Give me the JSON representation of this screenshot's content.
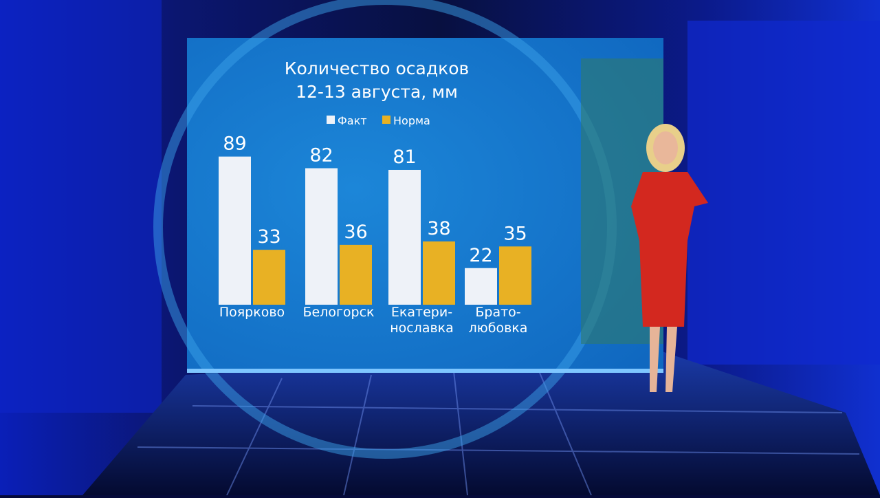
{
  "chart_data": {
    "type": "bar",
    "title": "Количество осадков",
    "subtitle": "12-13 августа, мм",
    "categories": [
      "Поярково",
      "Белогорск",
      "Екатери-\nнославка",
      "Брато-\nлюбовка"
    ],
    "series": [
      {
        "name": "Факт",
        "color": "#eef2f8",
        "values": [
          89,
          82,
          81,
          22
        ]
      },
      {
        "name": "Норма",
        "color": "#e8b124",
        "values": [
          33,
          36,
          38,
          35
        ]
      }
    ]
  }
}
